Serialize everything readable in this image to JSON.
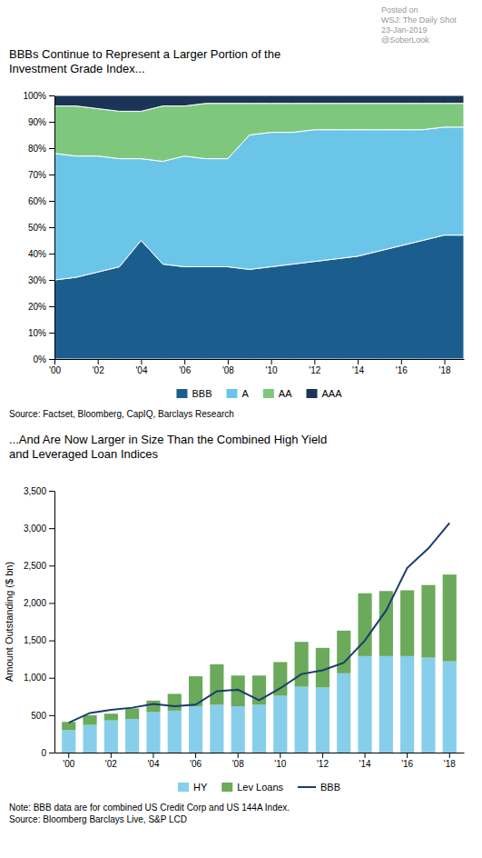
{
  "chart_data": [
    {
      "type": "area",
      "title": "BBBs Continue to Represent a Larger Portion of the\nInvestment Grade Index...",
      "annotations": [
        "Posted on",
        "WSJ: The Daily Shot",
        "23-Jan-2019",
        "@SoberLook"
      ],
      "source": [
        "Source: Factset, Bloomberg, CapIQ, Barclays Research"
      ],
      "stacked": true,
      "grid": false,
      "legend": "bottom",
      "x": [
        2000,
        2001,
        2002,
        2003,
        2004,
        2005,
        2006,
        2007,
        2008,
        2009,
        2010,
        2011,
        2012,
        2013,
        2014,
        2015,
        2016,
        2017,
        2018,
        2018.9
      ],
      "series": [
        {
          "name": "BBB",
          "color": "#1b5e8e",
          "values": [
            30,
            31,
            33,
            35,
            45,
            36,
            35,
            35,
            35,
            34,
            35,
            36,
            37,
            38,
            39,
            41,
            43,
            45,
            47,
            47
          ]
        },
        {
          "name": "A",
          "color": "#6bc5e8",
          "values": [
            48,
            46,
            44,
            41,
            31,
            39,
            42,
            41,
            41,
            51,
            51,
            50,
            50,
            49,
            48,
            46,
            44,
            42,
            41,
            41
          ]
        },
        {
          "name": "AA",
          "color": "#7ec87e",
          "values": [
            18,
            19,
            18,
            18,
            18,
            21,
            19,
            21,
            21,
            12,
            11,
            11,
            10,
            10,
            10,
            10,
            10,
            10,
            9,
            9
          ]
        },
        {
          "name": "AAA",
          "color": "#1a3558",
          "values": [
            4,
            4,
            5,
            6,
            6,
            4,
            4,
            3,
            3,
            3,
            3,
            3,
            3,
            3,
            3,
            3,
            3,
            3,
            3,
            3
          ]
        }
      ],
      "xlim": [
        2000,
        2018.9
      ],
      "xticks": [
        {
          "value": 2000,
          "label": "'00"
        },
        {
          "value": 2002,
          "label": "'02"
        },
        {
          "value": 2004,
          "label": "'04"
        },
        {
          "value": 2006,
          "label": "'06"
        },
        {
          "value": 2008,
          "label": "'08"
        },
        {
          "value": 2010,
          "label": "'10"
        },
        {
          "value": 2012,
          "label": "'12"
        },
        {
          "value": 2014,
          "label": "'14"
        },
        {
          "value": 2016,
          "label": "'16"
        },
        {
          "value": 2018,
          "label": "'18"
        }
      ],
      "ylim": [
        0,
        100
      ],
      "yticks": [
        {
          "value": 0,
          "label": "0%"
        },
        {
          "value": 10,
          "label": "10%"
        },
        {
          "value": 20,
          "label": "20%"
        },
        {
          "value": 30,
          "label": "30%"
        },
        {
          "value": 40,
          "label": "40%"
        },
        {
          "value": 50,
          "label": "50%"
        },
        {
          "value": 60,
          "label": "60%"
        },
        {
          "value": 70,
          "label": "70%"
        },
        {
          "value": 80,
          "label": "80%"
        },
        {
          "value": 90,
          "label": "90%"
        },
        {
          "value": 100,
          "label": "100%"
        }
      ]
    },
    {
      "type": "bar",
      "title": "...And Are Now Larger in Size Than the Combined High Yield\nand Leveraged Loan Indices",
      "y_label": "Amount Outstanding ($ bn)",
      "source": [
        "Note: BBB data are for combined US Credit Corp and US 144A Index.",
        "Source: Bloomberg Barclays Live, S&P LCD"
      ],
      "stacked": true,
      "grid": false,
      "legend": "bottom",
      "categories": [
        "'00",
        null,
        "'02",
        null,
        "'04",
        null,
        "'06",
        null,
        "'08",
        null,
        "'10",
        null,
        "'12",
        null,
        "'14",
        null,
        "'16",
        null,
        "'18"
      ],
      "series": [
        {
          "name": "HY",
          "type": "bar",
          "color": "#87ceeb",
          "values": [
            300,
            370,
            430,
            450,
            540,
            560,
            620,
            640,
            620,
            640,
            760,
            880,
            870,
            1060,
            1290,
            1290,
            1290,
            1270,
            1220
          ]
        },
        {
          "name": "Lev Loans",
          "type": "bar",
          "color": "#6aaa5a",
          "values": [
            110,
            130,
            90,
            140,
            155,
            225,
            400,
            540,
            410,
            390,
            450,
            600,
            530,
            570,
            840,
            870,
            880,
            970,
            1160
          ]
        },
        {
          "name": "BBB",
          "type": "line",
          "color": "#1a3c6e",
          "values": [
            400,
            530,
            570,
            600,
            650,
            620,
            640,
            820,
            840,
            700,
            860,
            1050,
            1100,
            1200,
            1500,
            1900,
            2470,
            2730,
            3070
          ]
        }
      ],
      "ylim": [
        0,
        3500
      ],
      "yticks": [
        0,
        500,
        {
          "value": 1000,
          "label": "1,000"
        },
        {
          "value": 1500,
          "label": "1,500"
        },
        {
          "value": 2000,
          "label": "2,000"
        },
        {
          "value": 2500,
          "label": "2,500"
        },
        {
          "value": 3000,
          "label": "3,000"
        },
        {
          "value": 3500,
          "label": "3,500"
        }
      ]
    }
  ]
}
